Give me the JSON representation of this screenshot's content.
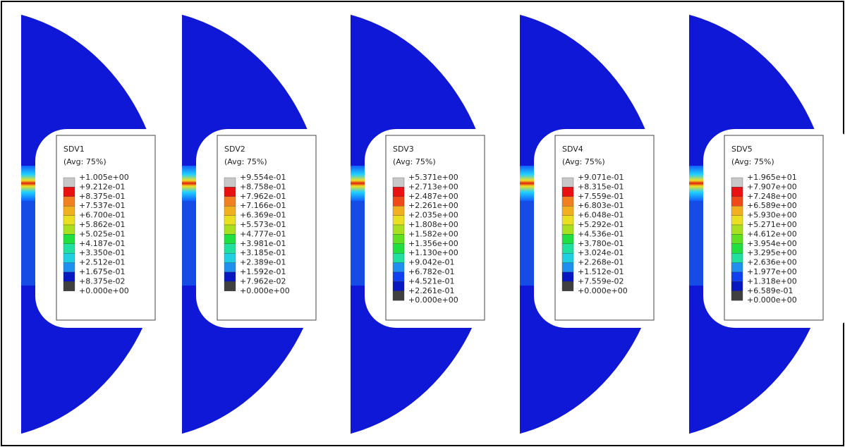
{
  "panels": [
    {
      "title": "SDV1",
      "avg": "(Avg: 75%)",
      "labels": [
        "+1.005e+00",
        "+9.212e-01",
        "+8.375e-01",
        "+7.537e-01",
        "+6.700e-01",
        "+5.862e-01",
        "+5.025e-01",
        "+4.187e-01",
        "+3.350e-01",
        "+2.512e-01",
        "+1.675e-01",
        "+8.375e-02",
        "+0.000e+00"
      ]
    },
    {
      "title": "SDV2",
      "avg": "(Avg: 75%)",
      "labels": [
        "+9.554e-01",
        "+8.758e-01",
        "+7.962e-01",
        "+7.166e-01",
        "+6.369e-01",
        "+5.573e-01",
        "+4.777e-01",
        "+3.981e-01",
        "+3.185e-01",
        "+2.389e-01",
        "+1.592e-01",
        "+7.962e-02",
        "+0.000e+00"
      ]
    },
    {
      "title": "SDV3",
      "avg": "(Avg: 75%)",
      "labels": [
        "+5.371e+00",
        "+2.713e+00",
        "+2.487e+00",
        "+2.261e+00",
        "+2.035e+00",
        "+1.808e+00",
        "+1.582e+00",
        "+1.356e+00",
        "+1.130e+00",
        "+9.042e-01",
        "+6.782e-01",
        "+4.521e-01",
        "+2.261e-01",
        "+0.000e+00"
      ]
    },
    {
      "title": "SDV4",
      "avg": "(Avg: 75%)",
      "labels": [
        "+9.071e-01",
        "+8.315e-01",
        "+7.559e-01",
        "+6.803e-01",
        "+6.048e-01",
        "+5.292e-01",
        "+4.536e-01",
        "+3.780e-01",
        "+3.024e-01",
        "+2.268e-01",
        "+1.512e-01",
        "+7.559e-02",
        "+0.000e+00"
      ]
    },
    {
      "title": "SDV5",
      "avg": "(Avg: 75%)",
      "labels": [
        "+1.965e+01",
        "+7.907e+00",
        "+7.248e+00",
        "+6.589e+00",
        "+5.930e+00",
        "+5.271e+00",
        "+4.612e+00",
        "+3.954e+00",
        "+3.295e+00",
        "+2.636e+00",
        "+1.977e+00",
        "+1.318e+00",
        "+6.589e-01",
        "+0.000e+00"
      ]
    }
  ]
}
